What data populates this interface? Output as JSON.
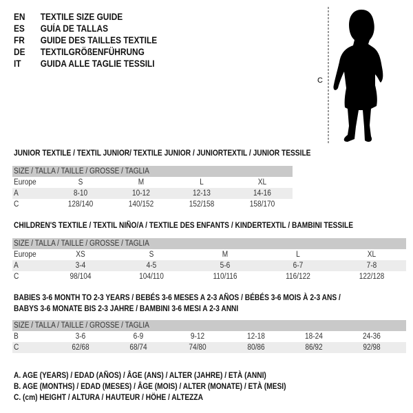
{
  "languages": [
    {
      "code": "EN",
      "title": "TEXTILE SIZE GUIDE"
    },
    {
      "code": "ES",
      "title": "GUÍA DE TALLAS"
    },
    {
      "code": "FR",
      "title": "GUIDE DES TAILLES TEXTILE"
    },
    {
      "code": "DE",
      "title": "TEXTILGRÖßENFÜHRUNG"
    },
    {
      "code": "IT",
      "title": "GUIDA ALLE TAGLIE TESSILI"
    }
  ],
  "figure": {
    "measure_label": "C",
    "icon": "child-silhouette-icon"
  },
  "size_header": "SIZE / TALLA / TAILLE / GRÖSSE / TAGLIA",
  "junior": {
    "title": "JUNIOR TEXTILE / TEXTIL JUNIOR/ TEXTILE JUNIOR / JUNIORTEXTIL / JUNIOR TESSILE",
    "rows": [
      {
        "label": "Europe",
        "values": [
          "S",
          "M",
          "L",
          "XL"
        ]
      },
      {
        "label": "A",
        "values": [
          "8-10",
          "10-12",
          "12-13",
          "14-16"
        ]
      },
      {
        "label": "C",
        "values": [
          "128/140",
          "140/152",
          "152/158",
          "158/170"
        ]
      }
    ]
  },
  "children": {
    "title": "CHILDREN'S TEXTILE / TEXTIL NIÑO/A / TEXTILE DES ENFANTS / KINDERTEXTIL / BAMBINI TESSILE",
    "rows": [
      {
        "label": "Europe",
        "values": [
          "XS",
          "S",
          "M",
          "L",
          "XL"
        ]
      },
      {
        "label": "A",
        "values": [
          "3-4",
          "4-5",
          "5-6",
          "6-7",
          "7-8"
        ]
      },
      {
        "label": "C",
        "values": [
          "98/104",
          "104/110",
          "110/116",
          "116/122",
          "122/128"
        ]
      }
    ]
  },
  "babies": {
    "title_line1": "BABIES 3-6 MONTH TO 2-3 YEARS / BEBÉS 3-6 MESES A 2-3 AÑOS / BÉBÉS 3-6 MOIS À 2-3 ANS /",
    "title_line2": "BABYS 3-6 MONATE BIS 2-3 JAHRE / BAMBINI 3-6 MESI A 2-3 ANNI",
    "rows": [
      {
        "label": "B",
        "values": [
          "3-6",
          "6-9",
          "9-12",
          "12-18",
          "18-24",
          "24-36"
        ]
      },
      {
        "label": "C",
        "values": [
          "62/68",
          "68/74",
          "74/80",
          "80/86",
          "86/92",
          "92/98"
        ]
      }
    ]
  },
  "legend": [
    "A. AGE (YEARS) / EDAD (AÑOS) / ÂGE (ANS) / ALTER (JAHRE) / ETÀ (ANNI)",
    "B. AGE (MONTHS) / EDAD (MESES) / ÂGE (MOIS) / ALTER (MONATE) / ETÀ (MESI)",
    "C. (cm) HEIGHT / ALTURA / HAUTEUR / HÖHE / ALTEZZA"
  ]
}
